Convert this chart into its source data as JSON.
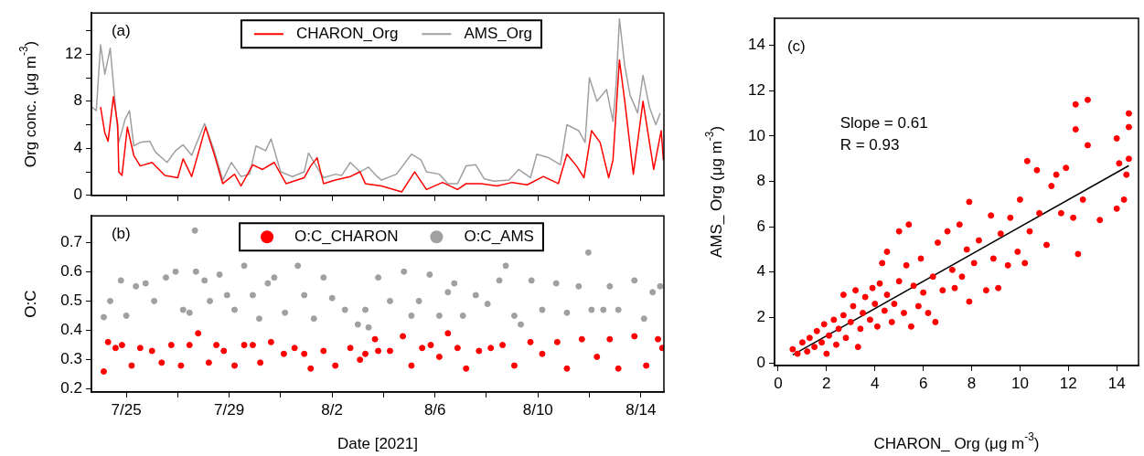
{
  "chart_data": [
    {
      "type": "line",
      "ylabel": "Org conc. (μg m$^{-3}$)",
      "annotations": [
        "(a)"
      ],
      "legend": "top",
      "marker": "none",
      "grid": false,
      "tick_labels": "y",
      "xlim": [
        "2021-07-23T15:30",
        "2021-08-14T21:30"
      ],
      "xticks": [
        {
          "value": "2021-07-25",
          "label": null
        },
        {
          "value": "2021-07-27",
          "label": null
        },
        {
          "value": "2021-07-29",
          "label": null
        },
        {
          "value": "2021-07-31",
          "label": null
        },
        {
          "value": "2021-08-02",
          "label": null
        },
        {
          "value": "2021-08-04",
          "label": null
        },
        {
          "value": "2021-08-06",
          "label": null
        },
        {
          "value": "2021-08-08",
          "label": null
        },
        {
          "value": "2021-08-10",
          "label": null
        },
        {
          "value": "2021-08-12",
          "label": null
        },
        {
          "value": "2021-08-14",
          "label": null
        }
      ],
      "ylim": [
        0,
        15.5
      ],
      "yticks": [
        0,
        {
          "value": 2,
          "label": null
        },
        4,
        {
          "value": 6,
          "label": null
        },
        8,
        {
          "value": 10,
          "label": null
        },
        12,
        {
          "value": 14,
          "label": null
        }
      ],
      "series": [
        {
          "name": "CHARON_Org",
          "color": "#ff0000",
          "x": [
            "2021-07-24T00:00",
            "2021-07-24T04:00",
            "2021-07-24T07:00",
            "2021-07-24T12:00",
            "2021-07-24T16:00",
            "2021-07-24T17:00",
            "2021-07-24T20:00",
            "2021-07-25T01:00",
            "2021-07-25T07:00",
            "2021-07-25T13:00",
            "2021-07-26T00:00",
            "2021-07-26T12:00",
            "2021-07-27T00:00",
            "2021-07-27T05:00",
            "2021-07-27T13:00",
            "2021-07-28T02:00",
            "2021-07-28T10:00",
            "2021-07-28T18:00",
            "2021-07-29T05:00",
            "2021-07-29T11:00",
            "2021-07-29T22:00",
            "2021-07-30T07:00",
            "2021-07-30T18:00",
            "2021-07-31T05:00",
            "2021-07-31T22:00",
            "2021-08-01T04:00",
            "2021-08-01T10:00",
            "2021-08-01T16:00",
            "2021-08-02T03:00",
            "2021-08-02T17:00",
            "2021-08-03T02:00",
            "2021-08-03T07:00",
            "2021-08-03T22:00",
            "2021-08-04T17:00",
            "2021-08-05T05:00",
            "2021-08-05T16:00",
            "2021-08-06T07:00",
            "2021-08-06T21:00",
            "2021-08-07T05:00",
            "2021-08-07T19:00",
            "2021-08-08T10:00",
            "2021-08-09T00:00",
            "2021-08-09T14:00",
            "2021-08-10T05:00",
            "2021-08-10T19:00",
            "2021-08-11T03:00",
            "2021-08-11T12:00",
            "2021-08-11T19:00",
            "2021-08-12T02:00",
            "2021-08-12T10:00",
            "2021-08-12T18:00",
            "2021-08-12T22:00",
            "2021-08-13T04:00",
            "2021-08-13T09:00",
            "2021-08-13T17:00",
            "2021-08-14T02:00",
            "2021-08-14T12:00",
            "2021-08-14T19:00",
            "2021-08-14T21:00"
          ],
          "values": [
            7.5,
            5.3,
            4.6,
            8.4,
            6.0,
            2.0,
            1.7,
            5.8,
            3.4,
            2.5,
            2.8,
            1.7,
            1.5,
            3.1,
            1.6,
            5.8,
            3.5,
            1.0,
            1.8,
            0.8,
            2.6,
            2.2,
            2.8,
            1.0,
            1.5,
            2.5,
            3.2,
            1.0,
            1.3,
            1.6,
            2.0,
            1.0,
            0.8,
            0.3,
            2.0,
            0.5,
            1.1,
            0.5,
            1.0,
            1.0,
            0.8,
            1.1,
            0.9,
            1.6,
            1.0,
            3.5,
            2.5,
            1.5,
            5.5,
            4.5,
            1.5,
            3.0,
            11.5,
            8.0,
            1.8,
            8.0,
            2.2,
            5.5,
            3.0
          ]
        },
        {
          "name": "AMS_Org",
          "color": "#a0a0a0",
          "x": [
            "2021-07-23T16:00",
            "2021-07-23T20:00",
            "2021-07-24T00:00",
            "2021-07-24T04:00",
            "2021-07-24T09:00",
            "2021-07-24T13:00",
            "2021-07-24T17:00",
            "2021-07-24T23:00",
            "2021-07-25T03:00",
            "2021-07-25T07:00",
            "2021-07-25T13:00",
            "2021-07-25T22:00",
            "2021-07-26T03:00",
            "2021-07-26T14:00",
            "2021-07-26T22:00",
            "2021-07-27T05:00",
            "2021-07-27T13:00",
            "2021-07-28T01:00",
            "2021-07-28T10:00",
            "2021-07-28T18:00",
            "2021-07-29T02:00",
            "2021-07-29T11:00",
            "2021-07-29T19:00",
            "2021-07-30T01:00",
            "2021-07-30T10:00",
            "2021-07-30T15:00",
            "2021-07-31T00:00",
            "2021-07-31T11:00",
            "2021-07-31T22:00",
            "2021-08-01T02:00",
            "2021-08-01T11:00",
            "2021-08-01T16:00",
            "2021-08-02T03:00",
            "2021-08-02T09:00",
            "2021-08-02T17:00",
            "2021-08-03T02:00",
            "2021-08-03T10:00",
            "2021-08-03T18:00",
            "2021-08-03T22:00",
            "2021-08-04T12:00",
            "2021-08-05T02:00",
            "2021-08-05T11:00",
            "2021-08-05T16:00",
            "2021-08-06T04:00",
            "2021-08-06T12:00",
            "2021-08-06T21:00",
            "2021-08-07T05:00",
            "2021-08-07T14:00",
            "2021-08-07T22:00",
            "2021-08-08T07:00",
            "2021-08-08T21:00",
            "2021-08-09T06:00",
            "2021-08-09T17:00",
            "2021-08-09T23:00",
            "2021-08-10T10:00",
            "2021-08-10T21:00",
            "2021-08-11T03:00",
            "2021-08-11T14:00",
            "2021-08-11T20:00",
            "2021-08-12T00:00",
            "2021-08-12T07:00",
            "2021-08-12T16:00",
            "2021-08-12T22:00",
            "2021-08-13T01:00",
            "2021-08-13T04:00",
            "2021-08-13T09:00",
            "2021-08-13T14:00",
            "2021-08-13T21:00",
            "2021-08-14T02:00",
            "2021-08-14T08:00",
            "2021-08-14T14:00",
            "2021-08-14T18:00"
          ],
          "values": [
            7.5,
            7.2,
            12.8,
            10.3,
            12.5,
            8.5,
            4.5,
            6.5,
            7.2,
            4.2,
            4.5,
            4.6,
            3.7,
            2.8,
            3.8,
            4.3,
            3.4,
            6.1,
            3.8,
            1.3,
            2.8,
            1.6,
            1.8,
            4.2,
            3.8,
            4.8,
            2.0,
            1.6,
            2.0,
            3.6,
            2.2,
            1.5,
            1.8,
            1.7,
            2.8,
            2.0,
            2.4,
            1.6,
            1.3,
            1.8,
            3.5,
            3.0,
            2.0,
            1.8,
            1.0,
            1.0,
            2.5,
            2.6,
            1.4,
            1.2,
            1.3,
            2.2,
            1.5,
            3.5,
            3.2,
            2.6,
            6.0,
            5.5,
            4.5,
            10.0,
            8.0,
            9.0,
            6.3,
            9.5,
            15.0,
            11.0,
            8.5,
            7.0,
            10.2,
            7.5,
            6.0,
            7.0
          ]
        }
      ]
    },
    {
      "type": "scatter",
      "ylabel": "O:C",
      "xlabel": "Date [2021]",
      "annotations": [
        "(b)"
      ],
      "legend": "top",
      "marker": "circle",
      "grid": false,
      "xlim": [
        "2021-07-23T15:30",
        "2021-08-14T21:30"
      ],
      "xticks": [
        {
          "value": "2021-07-25",
          "label": "7/25"
        },
        {
          "value": "2021-07-27",
          "label": null
        },
        {
          "value": "2021-07-29",
          "label": "7/29"
        },
        {
          "value": "2021-07-31",
          "label": null
        },
        {
          "value": "2021-08-02",
          "label": "8/2"
        },
        {
          "value": "2021-08-04",
          "label": null
        },
        {
          "value": "2021-08-06",
          "label": "8/6"
        },
        {
          "value": "2021-08-08",
          "label": null
        },
        {
          "value": "2021-08-10",
          "label": "8/10"
        },
        {
          "value": "2021-08-12",
          "label": null
        },
        {
          "value": "2021-08-14",
          "label": "8/14"
        }
      ],
      "ylim": [
        0.19,
        0.79
      ],
      "yticks": [
        0.2,
        0.3,
        0.4,
        0.5,
        0.6,
        0.7
      ],
      "series": [
        {
          "name": "O:C_CHARON",
          "color": "#ff0000",
          "x": [
            "2021-07-24T03:00",
            "2021-07-24T07:00",
            "2021-07-24T14:00",
            "2021-07-24T20:00",
            "2021-07-25T05:00",
            "2021-07-25T13:00",
            "2021-07-26T00:00",
            "2021-07-26T09:00",
            "2021-07-26T18:00",
            "2021-07-27T03:00",
            "2021-07-27T11:00",
            "2021-07-27T19:00",
            "2021-07-28T05:00",
            "2021-07-28T12:00",
            "2021-07-28T19:00",
            "2021-07-29T05:00",
            "2021-07-29T14:00",
            "2021-07-29T22:00",
            "2021-07-30T05:00",
            "2021-07-30T15:00",
            "2021-07-31T03:00",
            "2021-07-31T13:00",
            "2021-07-31T22:00",
            "2021-08-01T04:00",
            "2021-08-01T16:00",
            "2021-08-02T03:00",
            "2021-08-02T17:00",
            "2021-08-03T02:00",
            "2021-08-03T07:00",
            "2021-08-03T16:00",
            "2021-08-03T19:00",
            "2021-08-04T06:00",
            "2021-08-04T18:00",
            "2021-08-05T02:00",
            "2021-08-05T12:00",
            "2021-08-05T20:00",
            "2021-08-06T04:00",
            "2021-08-06T12:00",
            "2021-08-06T21:00",
            "2021-08-07T05:00",
            "2021-08-07T17:00",
            "2021-08-08T04:00",
            "2021-08-08T15:00",
            "2021-08-09T02:00",
            "2021-08-09T17:00",
            "2021-08-10T04:00",
            "2021-08-10T18:00",
            "2021-08-11T03:00",
            "2021-08-11T17:00",
            "2021-08-12T07:00",
            "2021-08-12T19:00",
            "2021-08-13T03:00",
            "2021-08-13T18:00",
            "2021-08-14T05:00",
            "2021-08-14T16:00",
            "2021-08-14T20:00"
          ],
          "values": [
            0.26,
            0.36,
            0.34,
            0.35,
            0.28,
            0.34,
            0.33,
            0.29,
            0.35,
            0.28,
            0.35,
            0.39,
            0.29,
            0.35,
            0.33,
            0.28,
            0.35,
            0.35,
            0.29,
            0.36,
            0.32,
            0.34,
            0.32,
            0.27,
            0.33,
            0.28,
            0.34,
            0.3,
            0.32,
            0.37,
            0.33,
            0.33,
            0.38,
            0.28,
            0.34,
            0.35,
            0.31,
            0.39,
            0.34,
            0.27,
            0.33,
            0.34,
            0.35,
            0.28,
            0.36,
            0.32,
            0.36,
            0.27,
            0.37,
            0.31,
            0.37,
            0.27,
            0.38,
            0.28,
            0.37,
            0.34
          ]
        },
        {
          "name": "O:C_AMS",
          "color": "#a0a0a0",
          "x": [
            "2021-07-24T03:00",
            "2021-07-24T09:00",
            "2021-07-24T19:00",
            "2021-07-25T00:00",
            "2021-07-25T09:00",
            "2021-07-25T18:00",
            "2021-07-26T02:00",
            "2021-07-26T13:00",
            "2021-07-26T22:00",
            "2021-07-27T05:00",
            "2021-07-27T11:00",
            "2021-07-27T16:00",
            "2021-07-27T17:00",
            "2021-07-28T01:00",
            "2021-07-28T06:00",
            "2021-07-28T15:00",
            "2021-07-28T22:00",
            "2021-07-29T05:00",
            "2021-07-29T14:00",
            "2021-07-29T22:00",
            "2021-07-30T04:00",
            "2021-07-30T12:00",
            "2021-07-30T18:00",
            "2021-07-31T04:00",
            "2021-07-31T16:00",
            "2021-07-31T22:00",
            "2021-08-01T07:00",
            "2021-08-01T16:00",
            "2021-08-02T00:00",
            "2021-08-02T12:00",
            "2021-08-03T00:00",
            "2021-08-03T07:00",
            "2021-08-03T10:00",
            "2021-08-03T19:00",
            "2021-08-04T06:00",
            "2021-08-04T19:00",
            "2021-08-05T02:00",
            "2021-08-05T09:00",
            "2021-08-05T19:00",
            "2021-08-06T04:00",
            "2021-08-06T12:00",
            "2021-08-06T18:00",
            "2021-08-07T02:00",
            "2021-08-07T14:00",
            "2021-08-08T01:00",
            "2021-08-08T12:00",
            "2021-08-08T18:00",
            "2021-08-09T02:00",
            "2021-08-09T08:00",
            "2021-08-09T18:00",
            "2021-08-10T04:00",
            "2021-08-10T17:00",
            "2021-08-11T03:00",
            "2021-08-11T14:00",
            "2021-08-11T23:00",
            "2021-08-12T02:00",
            "2021-08-12T13:00",
            "2021-08-12T19:00",
            "2021-08-13T03:00",
            "2021-08-13T18:00",
            "2021-08-14T03:00",
            "2021-08-14T11:00",
            "2021-08-14T18:00"
          ],
          "values": [
            0.445,
            0.5,
            0.57,
            0.45,
            0.55,
            0.56,
            0.5,
            0.58,
            0.6,
            0.47,
            0.46,
            0.74,
            0.6,
            0.57,
            0.5,
            0.59,
            0.52,
            0.47,
            0.62,
            0.52,
            0.44,
            0.56,
            0.58,
            0.46,
            0.62,
            0.52,
            0.44,
            0.58,
            0.51,
            0.47,
            0.42,
            0.47,
            0.41,
            0.58,
            0.5,
            0.6,
            0.45,
            0.5,
            0.59,
            0.45,
            0.53,
            0.56,
            0.45,
            0.52,
            0.49,
            0.57,
            0.62,
            0.45,
            0.42,
            0.57,
            0.47,
            0.56,
            0.46,
            0.55,
            0.665,
            0.47,
            0.47,
            0.55,
            0.47,
            0.57,
            0.44,
            0.53,
            0.55
          ]
        }
      ]
    },
    {
      "type": "scatter",
      "xlabel": "CHARON_ Org (μg m$^{-3}$)",
      "ylabel": "AMS_ Org (μg m$^{-3}$)",
      "annotations": [
        "(c)",
        "Slope = 0.61",
        "R = 0.93"
      ],
      "marker": "circle",
      "grid": false,
      "xlim": [
        -0.15,
        14.9
      ],
      "xticks": [
        0,
        2,
        4,
        6,
        8,
        10,
        12,
        14
      ],
      "ylim": [
        -0.12,
        15.2
      ],
      "yticks": [
        0,
        2,
        4,
        6,
        8,
        10,
        12,
        14
      ],
      "series": [
        {
          "color": "#ff0000",
          "x": [
            0.6,
            0.8,
            1,
            1.2,
            1.3,
            1.5,
            1.6,
            1.8,
            1.9,
            2,
            2.1,
            2.3,
            2.4,
            2.5,
            2.7,
            2.7,
            2.8,
            3,
            3.1,
            3.2,
            3.3,
            3.4,
            3.5,
            3.6,
            3.8,
            3.9,
            4,
            4.1,
            4.2,
            4.3,
            4.4,
            4.5,
            4.5,
            4.7,
            4.8,
            5,
            5,
            5.2,
            5.3,
            5.4,
            5.5,
            5.6,
            5.8,
            5.9,
            6,
            6.2,
            6.4,
            6.5,
            6.6,
            6.8,
            7,
            7.2,
            7.3,
            7.5,
            7.6,
            7.8,
            7.9,
            7.9,
            8.1,
            8.3,
            8.6,
            8.8,
            8.9,
            9.1,
            9.2,
            9.5,
            9.6,
            9.9,
            10,
            10.2,
            10.3,
            10.4,
            10.7,
            10.8,
            11.1,
            11.3,
            11.5,
            11.7,
            11.9,
            12.2,
            12.3,
            12.3,
            12.4,
            12.6,
            12.8,
            12.8,
            13.3,
            14,
            14,
            14.1,
            14.3,
            14.4,
            14.5,
            14.5,
            14.5
          ],
          "values": [
            0.6,
            0.4,
            0.9,
            0.5,
            1.1,
            0.7,
            1.4,
            0.9,
            1.7,
            0.4,
            1.2,
            1.9,
            0.8,
            1.5,
            2.1,
            3.0,
            1.1,
            1.8,
            2.5,
            3.2,
            0.7,
            1.5,
            2.2,
            2.9,
            1.9,
            3.3,
            2.6,
            1.6,
            3.5,
            4.4,
            2.3,
            3.0,
            4.9,
            1.8,
            2.6,
            3.6,
            5.8,
            2.2,
            4.3,
            6.1,
            1.6,
            3.4,
            2.5,
            4.6,
            3.1,
            2.2,
            3.8,
            1.8,
            5.3,
            3.2,
            5.8,
            4.1,
            3.3,
            6.1,
            3.8,
            5.0,
            2.7,
            7.1,
            4.4,
            5.4,
            3.2,
            6.5,
            4.6,
            3.3,
            5.7,
            4.3,
            6.4,
            4.9,
            7.2,
            4.4,
            8.9,
            5.8,
            8.5,
            6.6,
            5.2,
            7.8,
            8.3,
            6.6,
            8.6,
            6.4,
            11.4,
            10.3,
            4.8,
            7.2,
            11.6,
            9.6,
            6.3,
            6.8,
            9.9,
            8.8,
            7.2,
            8.3,
            11.0,
            10.4,
            9.0
          ]
        },
        {
          "type": "line",
          "color": "#000000",
          "marker": "none",
          "x": [
            0.6,
            14.5
          ],
          "values": [
            0.35,
            8.7
          ]
        }
      ]
    }
  ]
}
